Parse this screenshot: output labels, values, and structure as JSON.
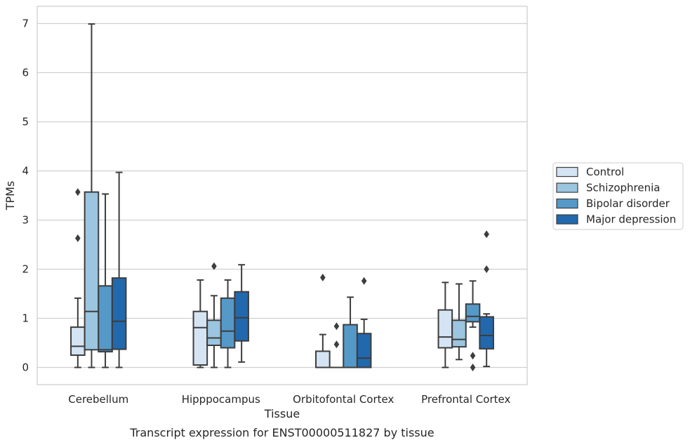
{
  "chart_data": {
    "type": "box",
    "title": "",
    "caption": "Transcript expression for ENST00000511827 by tissue",
    "xlabel": "Tissue",
    "ylabel": "TPMs",
    "ylim": [
      -0.35,
      7.35
    ],
    "yticks": [
      0,
      1,
      2,
      3,
      4,
      5,
      6,
      7
    ],
    "grid": "horizontal",
    "legend_position": "right",
    "categories": [
      "Cerebellum",
      "Hipppocampus",
      "Orbitofontal Cortex",
      "Prefrontal Cortex"
    ],
    "series": [
      {
        "name": "Control",
        "color": "#d4e4f3",
        "boxes": [
          {
            "whisker_low": 0.0,
            "q1": 0.25,
            "median": 0.43,
            "q3": 0.82,
            "whisker_high": 1.41,
            "outliers": [
              2.63,
              3.57
            ]
          },
          {
            "whisker_low": 0.0,
            "q1": 0.05,
            "median": 0.81,
            "q3": 1.14,
            "whisker_high": 1.78,
            "outliers": []
          },
          {
            "whisker_low": 0.0,
            "q1": 0.0,
            "median": 0.0,
            "q3": 0.33,
            "whisker_high": 0.67,
            "outliers": [
              1.83
            ]
          },
          {
            "whisker_low": 0.0,
            "q1": 0.4,
            "median": 0.62,
            "q3": 1.17,
            "whisker_high": 1.73,
            "outliers": []
          }
        ]
      },
      {
        "name": "Schizophrenia",
        "color": "#9cc5df",
        "boxes": [
          {
            "whisker_low": 0.0,
            "q1": 0.36,
            "median": 1.14,
            "q3": 3.57,
            "whisker_high": 6.99,
            "outliers": []
          },
          {
            "whisker_low": 0.0,
            "q1": 0.45,
            "median": 0.6,
            "q3": 0.96,
            "whisker_high": 1.46,
            "outliers": [
              2.06
            ]
          },
          {
            "whisker_low": 0.0,
            "q1": 0.0,
            "median": 0.0,
            "q3": 0.0,
            "whisker_high": 0.0,
            "outliers": [
              0.47,
              0.84
            ]
          },
          {
            "whisker_low": 0.16,
            "q1": 0.42,
            "median": 0.57,
            "q3": 0.96,
            "whisker_high": 1.7,
            "outliers": []
          }
        ]
      },
      {
        "name": "Bipolar disorder",
        "color": "#5599c8",
        "boxes": [
          {
            "whisker_low": 0.0,
            "q1": 0.32,
            "median": 0.36,
            "q3": 1.66,
            "whisker_high": 3.53,
            "outliers": []
          },
          {
            "whisker_low": 0.0,
            "q1": 0.4,
            "median": 0.74,
            "q3": 1.41,
            "whisker_high": 1.78,
            "outliers": []
          },
          {
            "whisker_low": 0.0,
            "q1": 0.0,
            "median": 0.0,
            "q3": 0.87,
            "whisker_high": 1.43,
            "outliers": []
          },
          {
            "whisker_low": 0.82,
            "q1": 0.93,
            "median": 1.04,
            "q3": 1.29,
            "whisker_high": 1.76,
            "outliers": [
              0.0,
              0.24
            ]
          }
        ]
      },
      {
        "name": "Major depression",
        "color": "#2268ad",
        "boxes": [
          {
            "whisker_low": 0.0,
            "q1": 0.37,
            "median": 0.94,
            "q3": 1.82,
            "whisker_high": 3.97,
            "outliers": []
          },
          {
            "whisker_low": 0.11,
            "q1": 0.54,
            "median": 1.01,
            "q3": 1.54,
            "whisker_high": 2.09,
            "outliers": []
          },
          {
            "whisker_low": 0.0,
            "q1": 0.0,
            "median": 0.19,
            "q3": 0.69,
            "whisker_high": 0.98,
            "outliers": [
              1.76
            ]
          },
          {
            "whisker_low": 0.02,
            "q1": 0.38,
            "median": 0.65,
            "q3": 1.03,
            "whisker_high": 1.09,
            "outliers": [
              2.0,
              2.71
            ]
          }
        ]
      }
    ]
  }
}
